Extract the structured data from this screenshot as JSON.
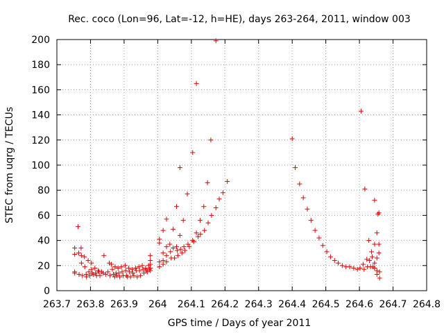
{
  "chart_data": {
    "type": "scatter",
    "title": "Rec. coco (Lon=96, Lat=-12, h=HE), days 263-264, 2011, window 003",
    "xlabel": "GPS time / Days of year 2011",
    "ylabel": "STEC from uqrg / TECUs",
    "xlim": [
      263.7,
      264.8
    ],
    "ylim": [
      0,
      200
    ],
    "xticks": [
      "263.7",
      "263.8",
      "263.9",
      "264",
      "264.1",
      "264.2",
      "264.3",
      "264.4",
      "264.5",
      "264.6",
      "264.7",
      "264.8"
    ],
    "yticks": [
      "0",
      "20",
      "40",
      "60",
      "80",
      "100",
      "120",
      "140",
      "160",
      "180",
      "200"
    ],
    "grid": true,
    "marker": "+",
    "color": "#e00000",
    "points": [
      [
        263.753,
        34
      ],
      [
        263.753,
        29
      ],
      [
        263.753,
        15
      ],
      [
        263.753,
        14
      ],
      [
        263.763,
        51
      ],
      [
        263.765,
        30
      ],
      [
        263.766,
        13
      ],
      [
        263.772,
        34
      ],
      [
        263.773,
        28
      ],
      [
        263.773,
        22
      ],
      [
        263.776,
        12
      ],
      [
        263.782,
        27
      ],
      [
        263.783,
        19
      ],
      [
        263.787,
        13
      ],
      [
        263.788,
        11
      ],
      [
        263.793,
        24
      ],
      [
        263.795,
        15
      ],
      [
        263.798,
        12
      ],
      [
        263.803,
        22
      ],
      [
        263.803,
        17
      ],
      [
        263.805,
        14
      ],
      [
        263.808,
        13
      ],
      [
        263.813,
        18
      ],
      [
        263.815,
        14
      ],
      [
        263.818,
        12
      ],
      [
        263.823,
        16
      ],
      [
        263.825,
        15
      ],
      [
        263.828,
        12
      ],
      [
        263.833,
        15
      ],
      [
        263.838,
        14
      ],
      [
        263.84,
        28
      ],
      [
        263.845,
        13
      ],
      [
        263.852,
        15
      ],
      [
        263.856,
        22
      ],
      [
        263.858,
        12
      ],
      [
        263.862,
        21
      ],
      [
        263.865,
        17
      ],
      [
        263.868,
        13
      ],
      [
        263.872,
        11
      ],
      [
        263.873,
        19
      ],
      [
        263.876,
        14
      ],
      [
        263.878,
        12
      ],
      [
        263.882,
        18
      ],
      [
        263.884,
        14
      ],
      [
        263.887,
        11
      ],
      [
        263.892,
        19
      ],
      [
        263.894,
        15
      ],
      [
        263.897,
        12
      ],
      [
        263.903,
        20
      ],
      [
        263.905,
        16
      ],
      [
        263.907,
        12
      ],
      [
        263.91,
        11
      ],
      [
        263.914,
        18
      ],
      [
        263.916,
        15
      ],
      [
        263.919,
        11
      ],
      [
        263.924,
        17
      ],
      [
        263.926,
        14
      ],
      [
        263.929,
        12
      ],
      [
        263.934,
        18
      ],
      [
        263.936,
        16
      ],
      [
        263.939,
        11
      ],
      [
        263.944,
        19
      ],
      [
        263.946,
        16
      ],
      [
        263.949,
        12
      ],
      [
        263.954,
        20
      ],
      [
        263.956,
        17
      ],
      [
        263.959,
        14
      ],
      [
        263.964,
        18
      ],
      [
        263.966,
        16
      ],
      [
        263.969,
        15
      ],
      [
        263.973,
        20
      ],
      [
        263.975,
        17
      ],
      [
        263.978,
        28
      ],
      [
        263.978,
        24
      ],
      [
        263.978,
        21
      ],
      [
        263.978,
        18
      ],
      [
        263.978,
        16
      ],
      [
        264.005,
        41
      ],
      [
        264.005,
        38
      ],
      [
        264.005,
        23
      ],
      [
        264.005,
        19
      ],
      [
        264.016,
        48
      ],
      [
        264.016,
        30
      ],
      [
        264.016,
        24
      ],
      [
        264.016,
        21
      ],
      [
        264.026,
        57
      ],
      [
        264.026,
        35
      ],
      [
        264.026,
        28
      ],
      [
        264.026,
        23
      ],
      [
        264.036,
        37
      ],
      [
        264.038,
        31
      ],
      [
        264.04,
        26
      ],
      [
        264.046,
        49
      ],
      [
        264.046,
        34
      ],
      [
        264.05,
        26
      ],
      [
        264.056,
        67
      ],
      [
        264.056,
        35
      ],
      [
        264.058,
        32
      ],
      [
        264.06,
        28
      ],
      [
        264.066,
        98
      ],
      [
        264.066,
        44
      ],
      [
        264.068,
        33
      ],
      [
        264.072,
        30
      ],
      [
        264.076,
        56
      ],
      [
        264.078,
        35
      ],
      [
        264.081,
        32
      ],
      [
        264.088,
        77
      ],
      [
        264.09,
        37
      ],
      [
        264.094,
        35
      ],
      [
        264.104,
        110
      ],
      [
        264.104,
        40
      ],
      [
        264.107,
        39
      ],
      [
        264.115,
        165
      ],
      [
        264.115,
        46
      ],
      [
        264.12,
        43
      ],
      [
        264.126,
        56
      ],
      [
        264.127,
        45
      ],
      [
        264.137,
        67
      ],
      [
        264.139,
        48
      ],
      [
        264.148,
        86
      ],
      [
        264.15,
        54
      ],
      [
        264.158,
        120
      ],
      [
        264.16,
        60
      ],
      [
        264.173,
        199
      ],
      [
        264.173,
        66
      ],
      [
        264.183,
        73
      ],
      [
        264.194,
        78
      ],
      [
        264.207,
        87
      ],
      [
        264.4,
        121
      ],
      [
        264.409,
        98
      ],
      [
        264.422,
        85
      ],
      [
        264.433,
        74
      ],
      [
        264.445,
        65
      ],
      [
        264.456,
        56
      ],
      [
        264.468,
        48
      ],
      [
        264.48,
        42
      ],
      [
        264.491,
        36
      ],
      [
        264.503,
        31
      ],
      [
        264.514,
        27
      ],
      [
        264.526,
        24
      ],
      [
        264.537,
        22
      ],
      [
        264.549,
        20
      ],
      [
        264.56,
        19
      ],
      [
        264.571,
        19
      ],
      [
        264.583,
        18
      ],
      [
        264.594,
        17
      ],
      [
        264.602,
        18
      ],
      [
        264.605,
        143
      ],
      [
        264.611,
        21
      ],
      [
        264.614,
        17
      ],
      [
        264.616,
        81
      ],
      [
        264.622,
        25
      ],
      [
        264.624,
        19
      ],
      [
        264.628,
        40
      ],
      [
        264.63,
        24
      ],
      [
        264.633,
        19
      ],
      [
        264.636,
        31
      ],
      [
        264.638,
        27
      ],
      [
        264.64,
        19
      ],
      [
        264.645,
        72
      ],
      [
        264.645,
        37
      ],
      [
        264.645,
        22
      ],
      [
        264.645,
        18
      ],
      [
        264.652,
        46
      ],
      [
        264.652,
        26
      ],
      [
        264.652,
        16
      ],
      [
        264.652,
        13
      ],
      [
        264.655,
        61
      ],
      [
        264.658,
        62
      ],
      [
        264.658,
        37
      ],
      [
        264.658,
        30
      ],
      [
        264.66,
        15
      ],
      [
        264.66,
        10
      ]
    ]
  }
}
